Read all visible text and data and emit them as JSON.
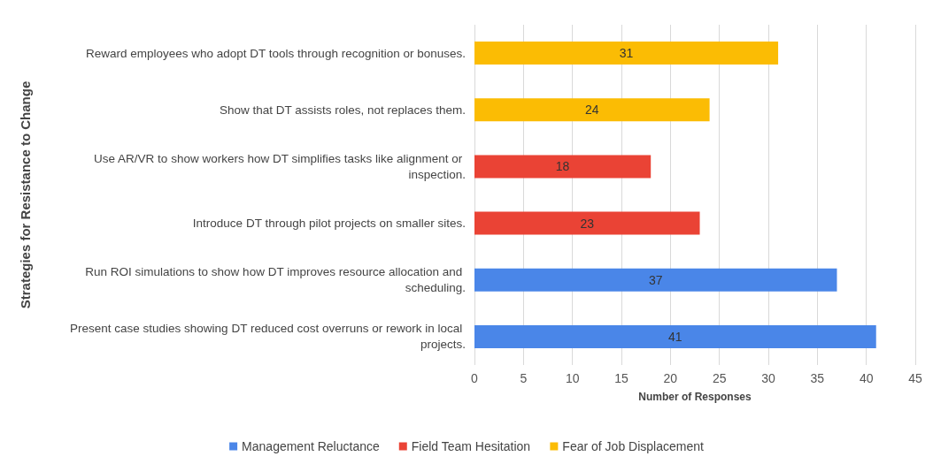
{
  "chart_data": {
    "type": "bar",
    "orientation": "horizontal",
    "stacked": true,
    "ylabel": "Strategies for Resistance to Change",
    "xlabel": "Number of Responses",
    "categories": [
      "Reward employees who adopt DT tools through recognition or bonuses.",
      "Show that DT assists roles, not replaces them.",
      "Use AR/VR to show workers how DT simplifies tasks like alignment or inspection.",
      "Introduce DT through pilot projects on smaller sites.",
      "Run ROI simulations to show how DT improves resource allocation and scheduling.",
      "Present case studies showing DT reduced cost overruns or rework in local projects."
    ],
    "series": [
      {
        "name": "Management Reluctance",
        "color": "#4a86e8",
        "values": [
          null,
          null,
          null,
          null,
          37,
          41
        ]
      },
      {
        "name": "Field Team Hesitation",
        "color": "#ea4335",
        "values": [
          null,
          null,
          18,
          23,
          null,
          null
        ]
      },
      {
        "name": "Fear of Job Displacement",
        "color": "#fbbc04",
        "values": [
          31,
          24,
          null,
          null,
          null,
          null
        ]
      }
    ],
    "xlim": [
      0,
      45
    ],
    "xticks": [
      0,
      5,
      10,
      15,
      20,
      25,
      30,
      35,
      40,
      45
    ],
    "grid": "x",
    "legend": "bottom",
    "data_labels": true
  }
}
